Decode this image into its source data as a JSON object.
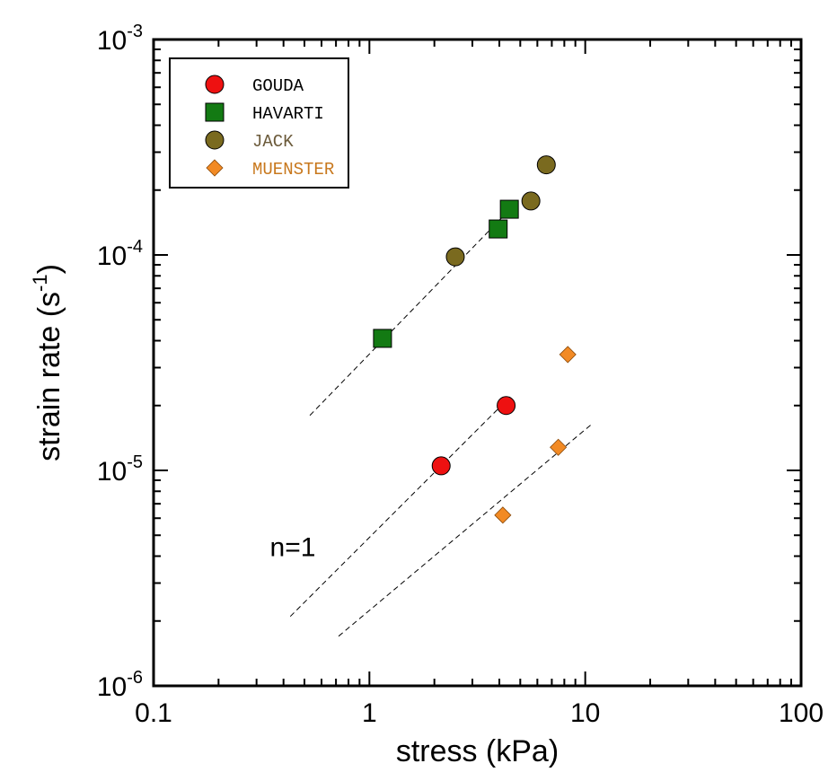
{
  "chart_data": {
    "type": "scatter",
    "xscale": "log",
    "yscale": "log",
    "xlim": [
      0.1,
      100
    ],
    "ylim": [
      1e-06,
      0.001
    ],
    "xlabel": "stress (kPa)",
    "ylabel": {
      "main": "strain rate (s",
      "sup": "-1",
      "close": ")"
    },
    "x_ticks": [
      {
        "value": 0.1,
        "label": "0.1"
      },
      {
        "value": 1,
        "label": "1"
      },
      {
        "value": 10,
        "label": "10"
      },
      {
        "value": 100,
        "label": "100"
      }
    ],
    "y_ticks": [
      {
        "value": 1e-06,
        "base": "10",
        "exp": "-6"
      },
      {
        "value": 1e-05,
        "base": "10",
        "exp": "-5"
      },
      {
        "value": 0.0001,
        "base": "10",
        "exp": "-4"
      },
      {
        "value": 0.001,
        "base": "10",
        "exp": "-3"
      }
    ],
    "legend_position": "top-left",
    "series": [
      {
        "name": "GOUDA",
        "marker": "circle",
        "color": "#ee1111",
        "text_color": "#000000",
        "points": [
          {
            "x": 2.15,
            "y": 1.05e-05
          },
          {
            "x": 4.3,
            "y": 2e-05
          }
        ]
      },
      {
        "name": "HAVARTI",
        "marker": "square",
        "color": "#137a13",
        "text_color": "#000000",
        "points": [
          {
            "x": 1.15,
            "y": 4.1e-05
          },
          {
            "x": 3.95,
            "y": 0.000132
          },
          {
            "x": 4.45,
            "y": 0.000163
          }
        ]
      },
      {
        "name": "JACK",
        "marker": "circle",
        "color": "#7a6a1f",
        "text_color": "#6b5a3a",
        "points": [
          {
            "x": 2.5,
            "y": 9.8e-05
          },
          {
            "x": 5.6,
            "y": 0.000178
          },
          {
            "x": 6.6,
            "y": 0.000262
          }
        ]
      },
      {
        "name": "MUENSTER",
        "marker": "diamond",
        "color": "#f28a24",
        "text_color": "#c8781d",
        "points": [
          {
            "x": 4.15,
            "y": 6.2e-06
          },
          {
            "x": 7.5,
            "y": 1.28e-05
          },
          {
            "x": 8.3,
            "y": 3.45e-05
          }
        ]
      }
    ],
    "reference_lines": [
      {
        "label": "slope n=1 (upper)",
        "x": [
          0.53,
          4.8
        ],
        "y": [
          1.8e-05,
          0.000175
        ]
      },
      {
        "label": "slope n=1 (middle)",
        "x": [
          0.43,
          4.5
        ],
        "y": [
          2.1e-06,
          2.2e-05
        ]
      },
      {
        "label": "slope n=1 (lower)",
        "x": [
          0.72,
          10.8
        ],
        "y": [
          1.7e-06,
          1.65e-05
        ]
      }
    ],
    "annotations": [
      {
        "text": "n=1",
        "x": 0.45,
        "y": 4.4e-06
      }
    ]
  }
}
